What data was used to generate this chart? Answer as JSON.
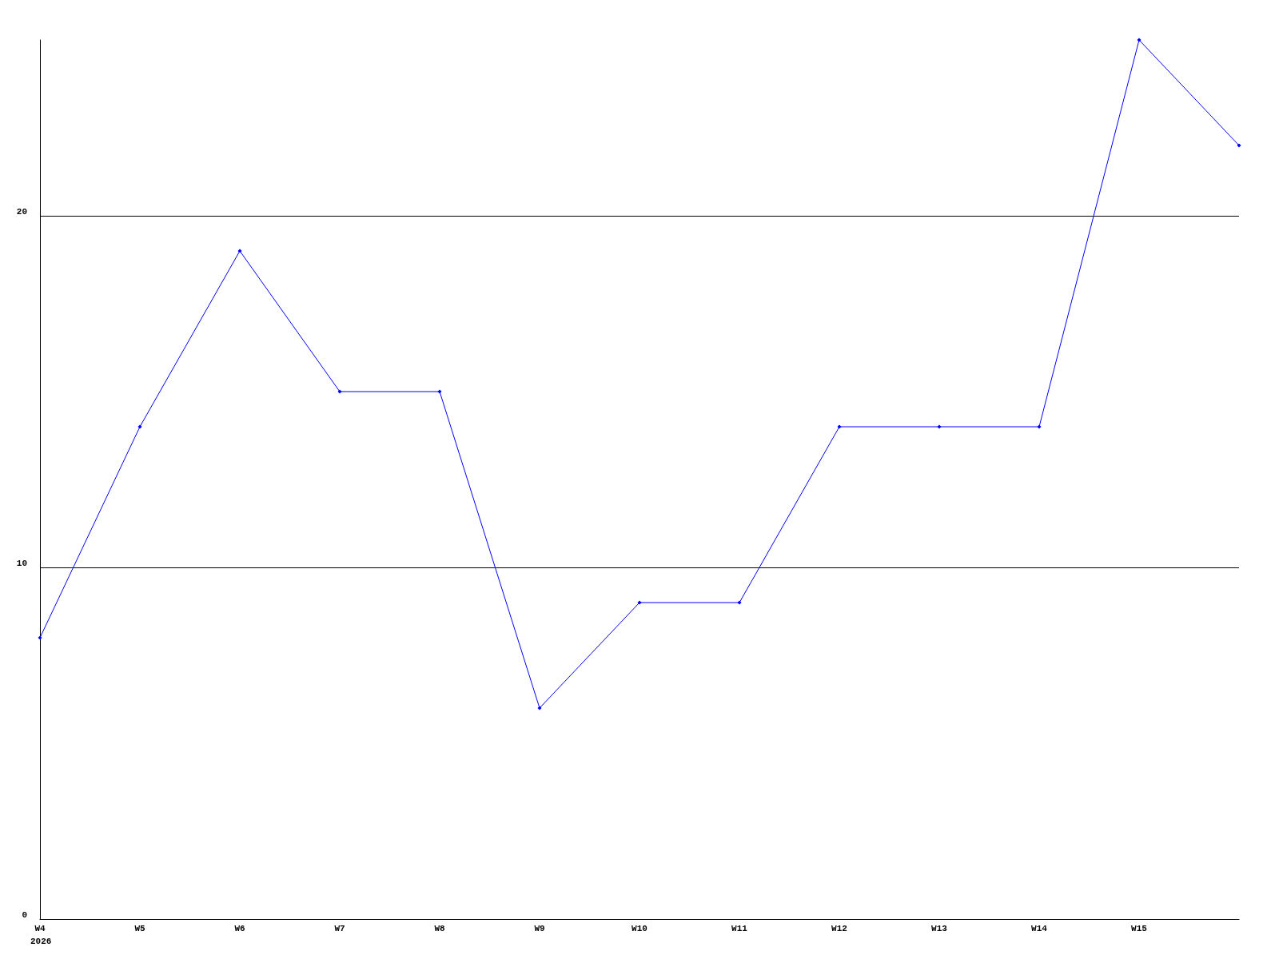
{
  "chart_data": {
    "type": "line",
    "categories": [
      "W4",
      "W5",
      "W6",
      "W7",
      "W8",
      "W9",
      "W10",
      "W11",
      "W12",
      "W13",
      "W14",
      "W15",
      null
    ],
    "series": [
      {
        "color": "#0000ff",
        "values": [
          8,
          14,
          19,
          15,
          15,
          6,
          9,
          9,
          14,
          14,
          14,
          25,
          22
        ]
      }
    ],
    "ylim": [
      0,
      25
    ],
    "yticks": [
      0,
      10,
      20
    ],
    "grid": "y",
    "marker": "diamond",
    "line_style": "solid",
    "annotations": [
      "2026"
    ]
  }
}
